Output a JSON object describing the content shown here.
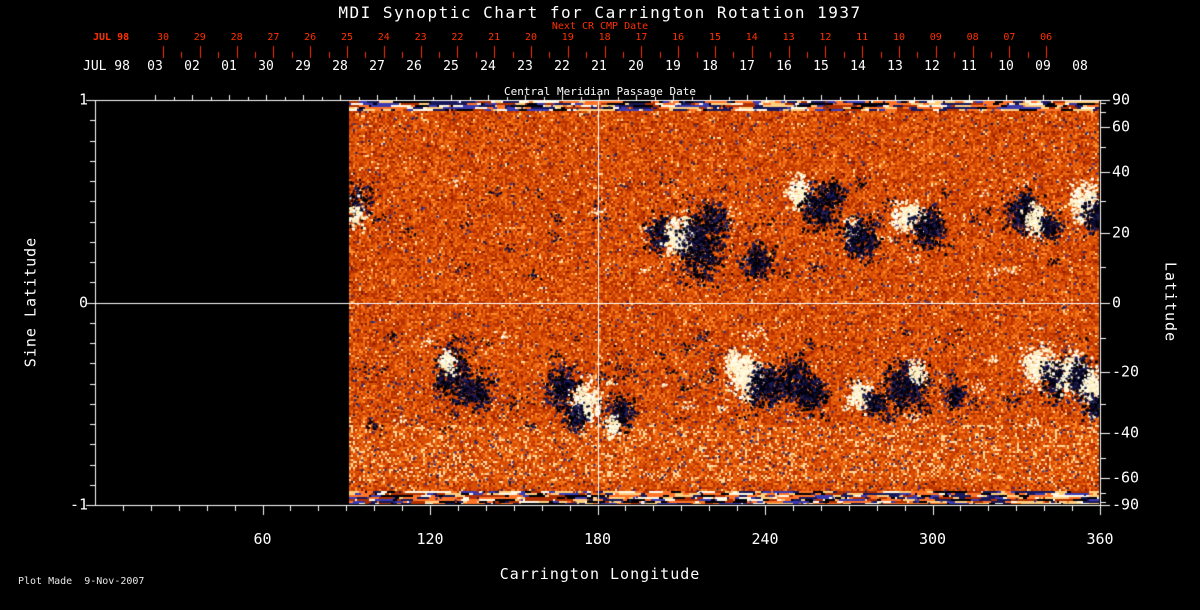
{
  "title": "MDI Synoptic Chart for Carrington Rotation 1937",
  "footer": {
    "plot_made": "Plot Made  9-Nov-2007"
  },
  "chart_data": {
    "type": "heatmap",
    "title": "MDI Synoptic Chart for Carrington Rotation 1937",
    "xlabel": "Carrington Longitude",
    "ylabel_left": "Sine Latitude",
    "ylabel_right": "Latitude",
    "xlim": [
      0,
      360
    ],
    "ylim_sine_latitude": [
      -1,
      1
    ],
    "x_tick_labels": [
      60,
      120,
      180,
      240,
      300,
      360
    ],
    "x_minor_tick_step_deg": 10,
    "left_ticks": [
      {
        "label": "1",
        "value": 1
      },
      {
        "label": "0",
        "value": 0
      },
      {
        "label": "-1",
        "value": -1
      }
    ],
    "right_tick_lats": [
      90,
      60,
      40,
      20,
      0,
      -20,
      -40,
      -60,
      -90
    ],
    "top_axis_red": {
      "label": "Next CR CMP Date",
      "prefix": "JUL 98",
      "dates": [
        "30",
        "29",
        "28",
        "27",
        "26",
        "25",
        "24",
        "23",
        "22",
        "21",
        "20",
        "19",
        "18",
        "17",
        "16",
        "15",
        "14",
        "13",
        "12",
        "11",
        "10",
        "09",
        "08",
        "07",
        "06"
      ]
    },
    "top_axis_white": {
      "label": "Central Meridian Passage Date",
      "prefix": "JUL 98",
      "dates": [
        "03",
        "02",
        "01",
        "30",
        "29",
        "28",
        "27",
        "26",
        "25",
        "24",
        "23",
        "22",
        "21",
        "20",
        "19",
        "18",
        "17",
        "16",
        "15",
        "14",
        "13",
        "12",
        "11",
        "10",
        "09",
        "08"
      ]
    },
    "grid_lines": {
      "longitude": 180,
      "sine_latitude": 0
    },
    "data_start_longitude": 91,
    "colors": {
      "background": "#000000",
      "axis": "#ffffff",
      "red_axis": "#ff3000",
      "palette_base": [
        "#8a1c00",
        "#b73200",
        "#d94e04",
        "#ef6c12",
        "#ff8c2e",
        "#ffd79a"
      ],
      "negative_spot": [
        "#000010",
        "#0a0a30",
        "#1c1c58",
        "#000000"
      ],
      "positive_spot": [
        "#fffef0",
        "#ffedba",
        "#fff8d8"
      ],
      "speckle_blue": [
        "#262668",
        "#343488",
        "#1c1c50"
      ]
    },
    "active_regions_format": [
      "longitude_deg",
      "sine_latitude",
      "sigma_lon_deg",
      "sigma_sinlat",
      "dot_count",
      "polarity(d=negative-dark, w=positive-white)"
    ],
    "active_regions": [
      [
        93,
        0.5,
        3,
        0.05,
        160,
        "d"
      ],
      [
        93,
        0.44,
        2,
        0.035,
        70,
        "w"
      ],
      [
        202,
        0.34,
        2.5,
        0.045,
        200,
        "d"
      ],
      [
        209,
        0.33,
        2.5,
        0.05,
        320,
        "w"
      ],
      [
        217,
        0.29,
        4,
        0.09,
        650,
        "d"
      ],
      [
        222,
        0.42,
        2,
        0.035,
        120,
        "d"
      ],
      [
        237,
        0.21,
        3,
        0.04,
        240,
        "d"
      ],
      [
        252,
        0.55,
        2,
        0.04,
        220,
        "w"
      ],
      [
        259,
        0.47,
        3,
        0.055,
        330,
        "d"
      ],
      [
        264,
        0.54,
        2,
        0.03,
        140,
        "d"
      ],
      [
        271,
        0.36,
        1.5,
        0.03,
        90,
        "w"
      ],
      [
        274,
        0.32,
        3.5,
        0.05,
        380,
        "d"
      ],
      [
        291,
        0.43,
        3,
        0.035,
        260,
        "w"
      ],
      [
        298,
        0.37,
        3,
        0.05,
        330,
        "d"
      ],
      [
        332,
        0.45,
        3,
        0.05,
        330,
        "d"
      ],
      [
        337,
        0.41,
        2,
        0.04,
        200,
        "w"
      ],
      [
        342,
        0.38,
        2,
        0.035,
        150,
        "d"
      ],
      [
        354,
        0.5,
        2.5,
        0.05,
        300,
        "w"
      ],
      [
        357,
        0.43,
        2,
        0.04,
        180,
        "d"
      ],
      [
        128,
        -0.35,
        3,
        0.06,
        380,
        "d"
      ],
      [
        126,
        -0.29,
        1.5,
        0.03,
        80,
        "w"
      ],
      [
        136,
        -0.43,
        2.5,
        0.045,
        240,
        "d"
      ],
      [
        167,
        -0.42,
        3,
        0.05,
        330,
        "d"
      ],
      [
        175,
        -0.49,
        2.5,
        0.05,
        300,
        "w"
      ],
      [
        172,
        -0.56,
        2,
        0.035,
        150,
        "d"
      ],
      [
        188,
        -0.55,
        2.5,
        0.04,
        200,
        "d"
      ],
      [
        185,
        -0.61,
        1.5,
        0.03,
        80,
        "w"
      ],
      [
        228,
        -0.29,
        1.5,
        0.03,
        90,
        "w"
      ],
      [
        233,
        -0.36,
        3,
        0.055,
        430,
        "w"
      ],
      [
        240,
        -0.41,
        3,
        0.05,
        380,
        "d"
      ],
      [
        250,
        -0.38,
        3,
        0.05,
        330,
        "d"
      ],
      [
        256,
        -0.45,
        2.5,
        0.04,
        240,
        "d"
      ],
      [
        274,
        -0.45,
        2,
        0.04,
        200,
        "w"
      ],
      [
        279,
        -0.49,
        2,
        0.03,
        150,
        "d"
      ],
      [
        290,
        -0.41,
        3.5,
        0.06,
        480,
        "d"
      ],
      [
        294,
        -0.34,
        1.5,
        0.03,
        90,
        "w"
      ],
      [
        308,
        -0.45,
        1.5,
        0.03,
        130,
        "d"
      ],
      [
        338,
        -0.31,
        3,
        0.05,
        330,
        "w"
      ],
      [
        344,
        -0.38,
        2.5,
        0.05,
        280,
        "d"
      ],
      [
        350,
        -0.35,
        2.5,
        0.05,
        330,
        "w"
      ],
      [
        353,
        -0.37,
        2,
        0.045,
        380,
        "d"
      ],
      [
        357,
        -0.41,
        2,
        0.04,
        240,
        "w"
      ],
      [
        358,
        -0.51,
        2,
        0.03,
        150,
        "d"
      ]
    ]
  }
}
